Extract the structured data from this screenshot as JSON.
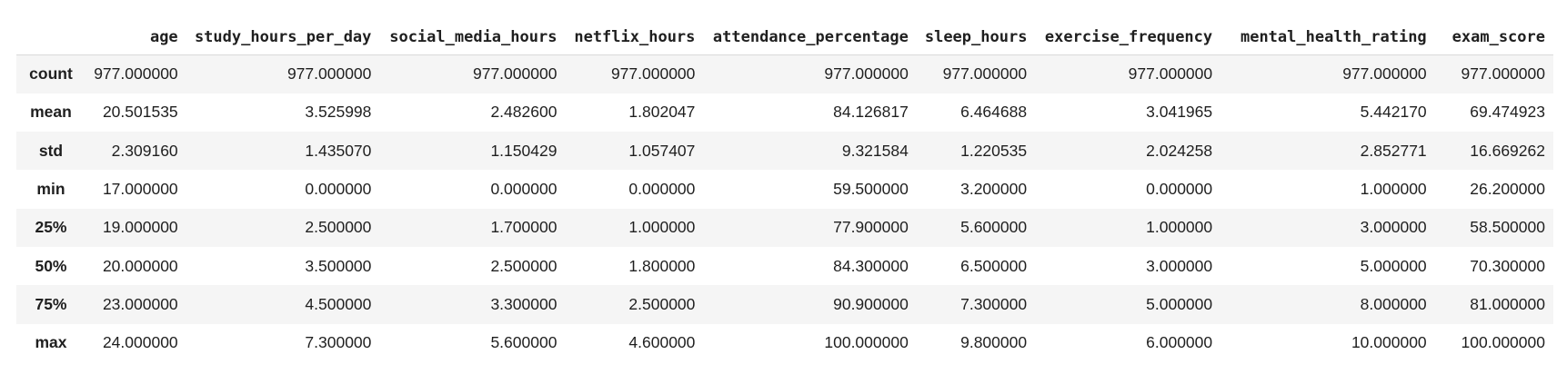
{
  "table": {
    "index_header": "",
    "columns": [
      "age",
      "study_hours_per_day",
      "social_media_hours",
      "netflix_hours",
      "attendance_percentage",
      "sleep_hours",
      "exercise_frequency",
      "mental_health_rating",
      "exam_score"
    ],
    "rows": [
      {
        "label": "count",
        "values": [
          "977.000000",
          "977.000000",
          "977.000000",
          "977.000000",
          "977.000000",
          "977.000000",
          "977.000000",
          "977.000000",
          "977.000000"
        ]
      },
      {
        "label": "mean",
        "values": [
          "20.501535",
          "3.525998",
          "2.482600",
          "1.802047",
          "84.126817",
          "6.464688",
          "3.041965",
          "5.442170",
          "69.474923"
        ]
      },
      {
        "label": "std",
        "values": [
          "2.309160",
          "1.435070",
          "1.150429",
          "1.057407",
          "9.321584",
          "1.220535",
          "2.024258",
          "2.852771",
          "16.669262"
        ]
      },
      {
        "label": "min",
        "values": [
          "17.000000",
          "0.000000",
          "0.000000",
          "0.000000",
          "59.500000",
          "3.200000",
          "0.000000",
          "1.000000",
          "26.200000"
        ]
      },
      {
        "label": "25%",
        "values": [
          "19.000000",
          "2.500000",
          "1.700000",
          "1.000000",
          "77.900000",
          "5.600000",
          "1.000000",
          "3.000000",
          "58.500000"
        ]
      },
      {
        "label": "50%",
        "values": [
          "20.000000",
          "3.500000",
          "2.500000",
          "1.800000",
          "84.300000",
          "6.500000",
          "3.000000",
          "5.000000",
          "70.300000"
        ]
      },
      {
        "label": "75%",
        "values": [
          "23.000000",
          "4.500000",
          "3.300000",
          "2.500000",
          "90.900000",
          "7.300000",
          "5.000000",
          "8.000000",
          "81.000000"
        ]
      },
      {
        "label": "max",
        "values": [
          "24.000000",
          "7.300000",
          "5.600000",
          "4.600000",
          "100.000000",
          "9.800000",
          "6.000000",
          "10.000000",
          "100.000000"
        ]
      }
    ]
  },
  "colors": {
    "stripe": "#f5f5f5",
    "text": "#1f1f1f",
    "header_rule": "#d9d9d9"
  }
}
